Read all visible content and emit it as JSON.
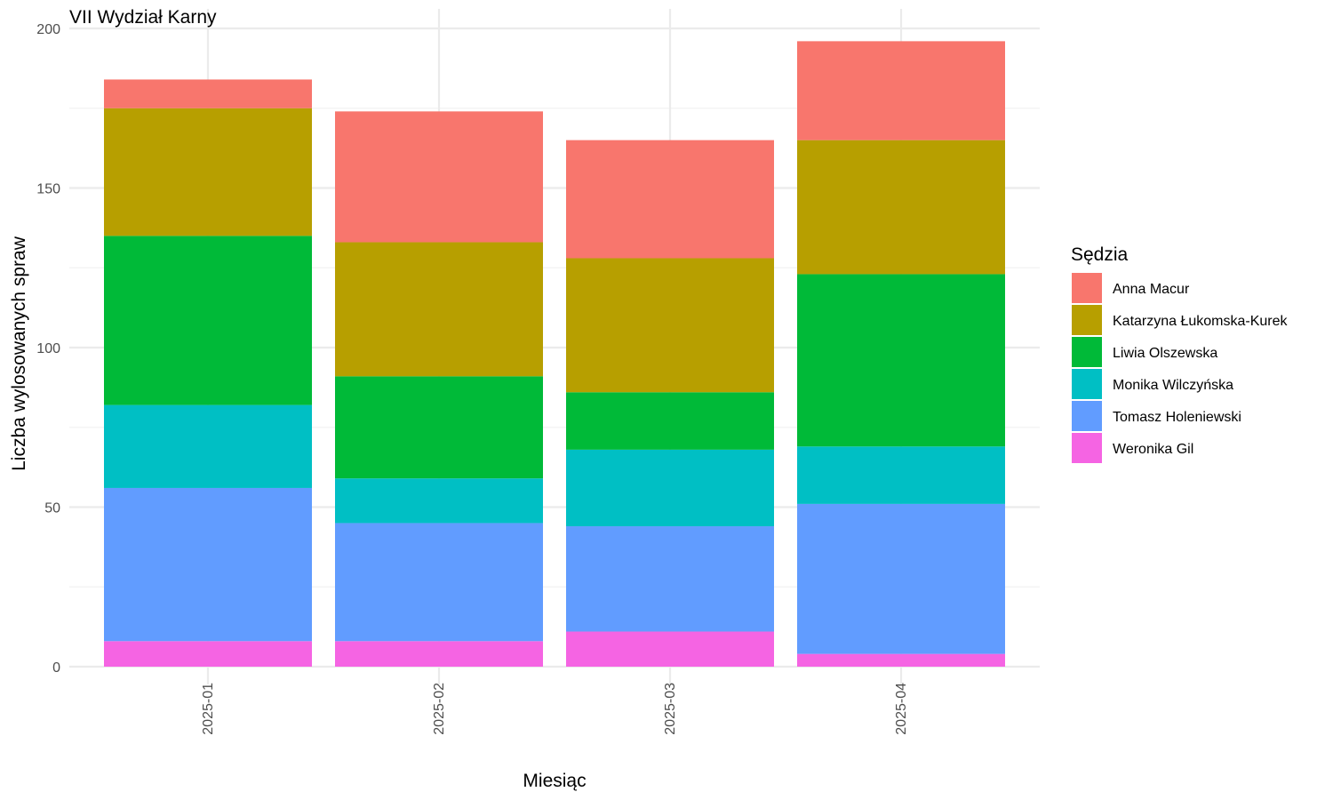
{
  "chart_data": {
    "type": "bar",
    "stacked": true,
    "title": "VII Wydział Karny",
    "xlabel": "Miesiąc",
    "ylabel": "Liczba wylosowanych spraw",
    "ylim": [
      0,
      200
    ],
    "yticks": [
      0,
      50,
      100,
      150,
      200
    ],
    "grid": true,
    "legend_title": "Sędzia",
    "legend_position": "right",
    "categories": [
      "2025-01",
      "2025-02",
      "2025-03",
      "2025-04"
    ],
    "stack_order_bottom_to_top": [
      "Weronika Gil",
      "Tomasz Holeniewski",
      "Monika Wilczyńska",
      "Liwia Olszewska",
      "Katarzyna Łukomska-Kurek",
      "Anna Macur"
    ],
    "series": [
      {
        "name": "Anna Macur",
        "color": "#F8766D",
        "values": [
          9,
          41,
          37,
          31
        ]
      },
      {
        "name": "Katarzyna Łukomska-Kurek",
        "color": "#B79F00",
        "values": [
          40,
          42,
          42,
          42
        ]
      },
      {
        "name": "Liwia Olszewska",
        "color": "#00BA38",
        "values": [
          53,
          32,
          18,
          54
        ]
      },
      {
        "name": "Monika Wilczyńska",
        "color": "#00BFC4",
        "values": [
          26,
          14,
          24,
          18
        ]
      },
      {
        "name": "Tomasz Holeniewski",
        "color": "#619CFF",
        "values": [
          48,
          37,
          33,
          47
        ]
      },
      {
        "name": "Weronika Gil",
        "color": "#F564E3",
        "values": [
          8,
          8,
          11,
          4
        ]
      }
    ]
  }
}
